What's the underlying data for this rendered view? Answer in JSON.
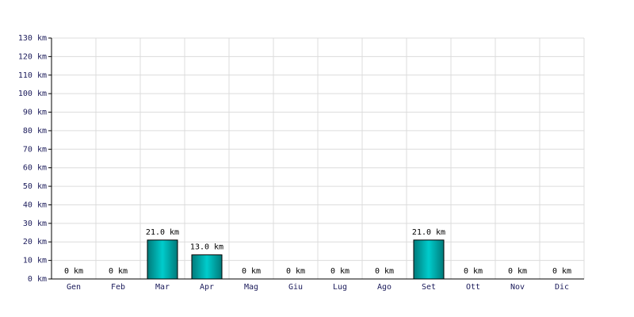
{
  "chart_data": {
    "type": "bar",
    "categories": [
      "Gen",
      "Feb",
      "Mar",
      "Apr",
      "Mag",
      "Giu",
      "Lug",
      "Ago",
      "Set",
      "Ott",
      "Nov",
      "Dic"
    ],
    "values": [
      0,
      0,
      21,
      13,
      0,
      0,
      0,
      0,
      21,
      0,
      0,
      0
    ],
    "value_labels": [
      "0 km",
      "0 km",
      "21.0 km",
      "13.0 km",
      "0 km",
      "0 km",
      "0 km",
      "0 km",
      "21.0 km",
      "0 km",
      "0 km",
      "0 km"
    ],
    "color": "#00cccc",
    "ylim": [
      0,
      130
    ],
    "yticks": [
      {
        "value": 0,
        "label": "0 km"
      },
      {
        "value": 10,
        "label": "10 km"
      },
      {
        "value": 20,
        "label": "20 km"
      },
      {
        "value": 30,
        "label": "30 km"
      },
      {
        "value": 40,
        "label": "40 km"
      },
      {
        "value": 50,
        "label": "50 km"
      },
      {
        "value": 60,
        "label": "60 km"
      },
      {
        "value": 70,
        "label": "70 km"
      },
      {
        "value": 80,
        "label": "80 km"
      },
      {
        "value": 90,
        "label": "90 km"
      },
      {
        "value": 100,
        "label": "100 km"
      },
      {
        "value": 110,
        "label": "110 km"
      },
      {
        "value": 120,
        "label": "120 km"
      },
      {
        "value": 130,
        "label": "130 km"
      }
    ],
    "grid": true
  }
}
